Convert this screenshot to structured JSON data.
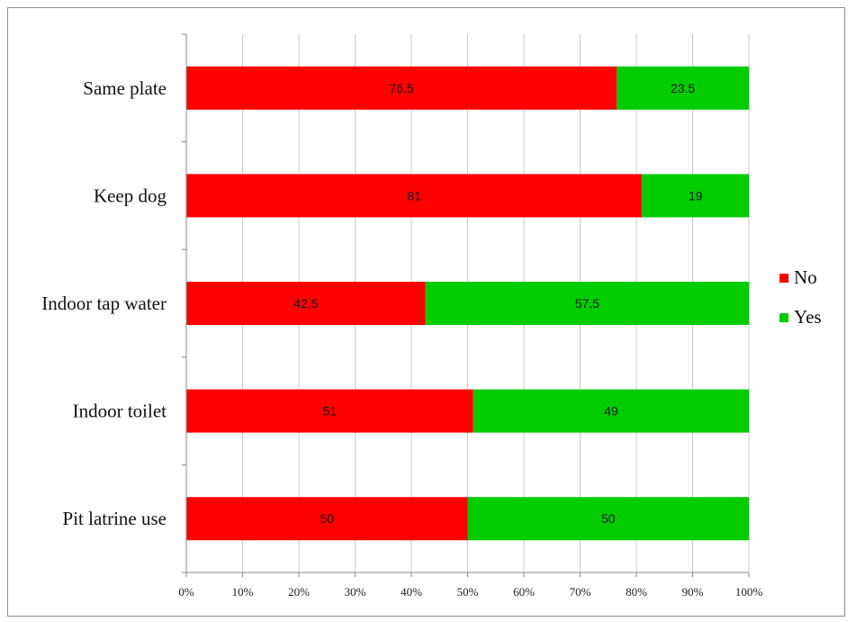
{
  "chart_data": {
    "type": "bar",
    "orientation": "horizontal",
    "stacked": true,
    "percent_stacked": true,
    "categories": [
      "Same plate",
      "Keep dog",
      "Indoor tap water",
      "Indoor toilet",
      "Pit latrine use"
    ],
    "series": [
      {
        "name": "No",
        "color": "#ff0000",
        "values": [
          76.5,
          81,
          42.5,
          51,
          50
        ]
      },
      {
        "name": "Yes",
        "color": "#00cc00",
        "values": [
          23.5,
          19,
          57.5,
          49,
          50
        ]
      }
    ],
    "xlim": [
      0,
      100
    ],
    "x_ticks": [
      "0%",
      "10%",
      "20%",
      "30%",
      "40%",
      "50%",
      "60%",
      "70%",
      "80%",
      "90%",
      "100%"
    ],
    "grid": true,
    "legend_position": "right"
  }
}
